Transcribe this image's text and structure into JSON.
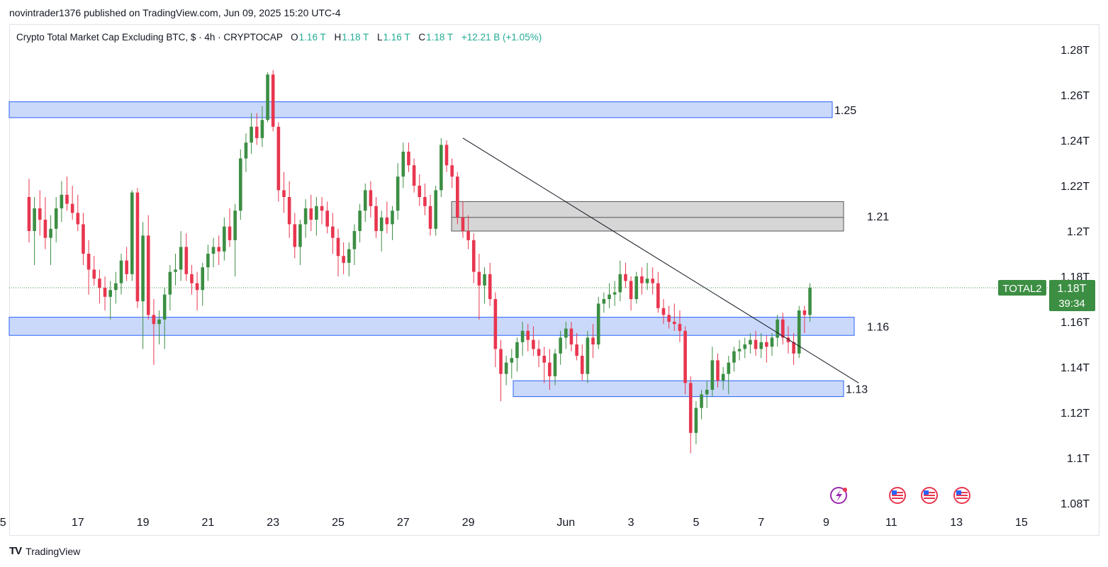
{
  "publisher_line": "novintrader1376 published on TradingView.com, Jun 09, 2025 15:20 UTC-4",
  "legend": {
    "title": "Crypto Total Market Cap Excluding BTC, $ · 4h · CRYPTOCAP",
    "o_label": "O",
    "o_value": "1.16 T",
    "h_label": "H",
    "h_value": "1.18 T",
    "l_label": "L",
    "l_value": "1.16 T",
    "c_label": "C",
    "c_value": "1.18 T",
    "change": "+12.21 B (+1.05%)"
  },
  "footer": {
    "logo_text": "TradingView"
  },
  "colors": {
    "up": "#3c8e43",
    "down": "#e8364f",
    "zone_fill": "#cad9fa",
    "zone_stroke": "#2962ff",
    "gray_zone_fill": "#d6d6d6",
    "label_bg": "#3c8e43"
  },
  "chart_data": {
    "type": "candlestick",
    "timeframe": "4h",
    "symbol": "TOTAL2",
    "ylim": [
      1.08,
      1.28
    ],
    "y_unit": "T",
    "y_ticks": [
      "1.28T",
      "1.26T",
      "1.24T",
      "1.22T",
      "1.2T",
      "1.18T",
      "1.16T",
      "1.14T",
      "1.12T",
      "1.1T",
      "1.08T"
    ],
    "x_ticks": [
      "5",
      "17",
      "19",
      "21",
      "23",
      "25",
      "27",
      "29",
      "Jun",
      "3",
      "5",
      "7",
      "9",
      "11",
      "13",
      "15"
    ],
    "last_price": {
      "label": "TOTAL2",
      "value": "1.18T",
      "countdown": "39:34",
      "y": 1.175
    },
    "zones": [
      {
        "label": "1.25",
        "type": "blue",
        "y_low": 1.25,
        "y_high": 1.257
      },
      {
        "label": "1.21",
        "type": "gray",
        "y_low": 1.2,
        "y_high": 1.213,
        "mid": 1.206
      },
      {
        "label": "1.16",
        "type": "blue",
        "y_low": 1.154,
        "y_high": 1.162
      },
      {
        "label": "1.13",
        "type": "blue",
        "y_low": 1.127,
        "y_high": 1.134
      }
    ],
    "trendline": {
      "start_date": "May 28 20:00",
      "start": 1.241,
      "end_date": "Jun 10 00:00",
      "end": 1.133
    },
    "first_candle": "May 15 12:00",
    "candles": [
      [
        1.215,
        1.223,
        1.195,
        1.2
      ],
      [
        1.2,
        1.215,
        1.185,
        1.21
      ],
      [
        1.21,
        1.218,
        1.198,
        1.205
      ],
      [
        1.205,
        1.215,
        1.192,
        1.197
      ],
      [
        1.197,
        1.207,
        1.185,
        1.201
      ],
      [
        1.201,
        1.215,
        1.195,
        1.21
      ],
      [
        1.21,
        1.222,
        1.204,
        1.216
      ],
      [
        1.216,
        1.224,
        1.209,
        1.212
      ],
      [
        1.212,
        1.22,
        1.205,
        1.208
      ],
      [
        1.208,
        1.216,
        1.2,
        1.203
      ],
      [
        1.203,
        1.208,
        1.185,
        1.19
      ],
      [
        1.19,
        1.196,
        1.172,
        1.183
      ],
      [
        1.183,
        1.189,
        1.176,
        1.179
      ],
      [
        1.179,
        1.183,
        1.168,
        1.175
      ],
      [
        1.175,
        1.18,
        1.165,
        1.171
      ],
      [
        1.171,
        1.178,
        1.161,
        1.174
      ],
      [
        1.174,
        1.182,
        1.168,
        1.177
      ],
      [
        1.177,
        1.19,
        1.172,
        1.187
      ],
      [
        1.187,
        1.193,
        1.178,
        1.181
      ],
      [
        1.181,
        1.218,
        1.178,
        1.217
      ],
      [
        1.217,
        1.219,
        1.166,
        1.169
      ],
      [
        1.169,
        1.204,
        1.148,
        1.198
      ],
      [
        1.198,
        1.207,
        1.161,
        1.163
      ],
      [
        1.163,
        1.17,
        1.141,
        1.159
      ],
      [
        1.159,
        1.165,
        1.15,
        1.161
      ],
      [
        1.161,
        1.175,
        1.148,
        1.172
      ],
      [
        1.172,
        1.185,
        1.165,
        1.182
      ],
      [
        1.182,
        1.19,
        1.176,
        1.183
      ],
      [
        1.183,
        1.2,
        1.178,
        1.193
      ],
      [
        1.193,
        1.199,
        1.178,
        1.181
      ],
      [
        1.181,
        1.185,
        1.172,
        1.177
      ],
      [
        1.177,
        1.182,
        1.165,
        1.174
      ],
      [
        1.174,
        1.186,
        1.167,
        1.184
      ],
      [
        1.184,
        1.194,
        1.178,
        1.19
      ],
      [
        1.19,
        1.197,
        1.184,
        1.193
      ],
      [
        1.193,
        1.198,
        1.185,
        1.191
      ],
      [
        1.191,
        1.206,
        1.187,
        1.202
      ],
      [
        1.202,
        1.21,
        1.193,
        1.196
      ],
      [
        1.196,
        1.212,
        1.18,
        1.209
      ],
      [
        1.209,
        1.236,
        1.205,
        1.232
      ],
      [
        1.232,
        1.243,
        1.226,
        1.239
      ],
      [
        1.239,
        1.252,
        1.234,
        1.246
      ],
      [
        1.246,
        1.252,
        1.238,
        1.241
      ],
      [
        1.241,
        1.255,
        1.237,
        1.249
      ],
      [
        1.249,
        1.27,
        1.248,
        1.269
      ],
      [
        1.269,
        1.271,
        1.244,
        1.246
      ],
      [
        1.246,
        1.248,
        1.213,
        1.218
      ],
      [
        1.218,
        1.226,
        1.208,
        1.215
      ],
      [
        1.215,
        1.222,
        1.197,
        1.203
      ],
      [
        1.203,
        1.208,
        1.188,
        1.193
      ],
      [
        1.193,
        1.205,
        1.185,
        1.203
      ],
      [
        1.203,
        1.214,
        1.197,
        1.21
      ],
      [
        1.21,
        1.216,
        1.2,
        1.205
      ],
      [
        1.205,
        1.215,
        1.198,
        1.211
      ],
      [
        1.211,
        1.215,
        1.203,
        1.209
      ],
      [
        1.209,
        1.213,
        1.199,
        1.202
      ],
      [
        1.202,
        1.208,
        1.19,
        1.197
      ],
      [
        1.197,
        1.201,
        1.18,
        1.189
      ],
      [
        1.189,
        1.195,
        1.181,
        1.186
      ],
      [
        1.186,
        1.195,
        1.18,
        1.192
      ],
      [
        1.192,
        1.203,
        1.185,
        1.2
      ],
      [
        1.2,
        1.212,
        1.195,
        1.209
      ],
      [
        1.209,
        1.221,
        1.204,
        1.218
      ],
      [
        1.218,
        1.222,
        1.206,
        1.211
      ],
      [
        1.211,
        1.215,
        1.197,
        1.2
      ],
      [
        1.2,
        1.209,
        1.191,
        1.206
      ],
      [
        1.206,
        1.213,
        1.199,
        1.203
      ],
      [
        1.203,
        1.211,
        1.196,
        1.209
      ],
      [
        1.209,
        1.23,
        1.205,
        1.224
      ],
      [
        1.224,
        1.239,
        1.219,
        1.235
      ],
      [
        1.235,
        1.239,
        1.226,
        1.229
      ],
      [
        1.229,
        1.232,
        1.217,
        1.22
      ],
      [
        1.22,
        1.225,
        1.211,
        1.215
      ],
      [
        1.215,
        1.221,
        1.207,
        1.211
      ],
      [
        1.211,
        1.216,
        1.198,
        1.201
      ],
      [
        1.201,
        1.22,
        1.198,
        1.218
      ],
      [
        1.218,
        1.241,
        1.215,
        1.238
      ],
      [
        1.238,
        1.24,
        1.226,
        1.229
      ],
      [
        1.229,
        1.232,
        1.219,
        1.224
      ],
      [
        1.224,
        1.226,
        1.203,
        1.206
      ],
      [
        1.206,
        1.213,
        1.197,
        1.2
      ],
      [
        1.2,
        1.207,
        1.192,
        1.196
      ],
      [
        1.196,
        1.199,
        1.177,
        1.182
      ],
      [
        1.182,
        1.19,
        1.161,
        1.176
      ],
      [
        1.176,
        1.184,
        1.168,
        1.181
      ],
      [
        1.181,
        1.186,
        1.167,
        1.17
      ],
      [
        1.17,
        1.173,
        1.14,
        1.148
      ],
      [
        1.148,
        1.152,
        1.125,
        1.137
      ],
      [
        1.137,
        1.145,
        1.132,
        1.142
      ],
      [
        1.142,
        1.148,
        1.135,
        1.144
      ],
      [
        1.144,
        1.153,
        1.138,
        1.151
      ],
      [
        1.151,
        1.16,
        1.145,
        1.156
      ],
      [
        1.156,
        1.159,
        1.147,
        1.152
      ],
      [
        1.152,
        1.158,
        1.145,
        1.148
      ],
      [
        1.148,
        1.152,
        1.14,
        1.145
      ],
      [
        1.145,
        1.149,
        1.133,
        1.142
      ],
      [
        1.142,
        1.148,
        1.13,
        1.136
      ],
      [
        1.136,
        1.148,
        1.132,
        1.146
      ],
      [
        1.146,
        1.156,
        1.141,
        1.153
      ],
      [
        1.153,
        1.16,
        1.148,
        1.157
      ],
      [
        1.157,
        1.16,
        1.147,
        1.15
      ],
      [
        1.15,
        1.155,
        1.143,
        1.145
      ],
      [
        1.145,
        1.15,
        1.134,
        1.137
      ],
      [
        1.137,
        1.156,
        1.133,
        1.153
      ],
      [
        1.153,
        1.159,
        1.144,
        1.15
      ],
      [
        1.15,
        1.171,
        1.148,
        1.168
      ],
      [
        1.168,
        1.173,
        1.164,
        1.17
      ],
      [
        1.17,
        1.177,
        1.166,
        1.172
      ],
      [
        1.172,
        1.178,
        1.167,
        1.173
      ],
      [
        1.173,
        1.187,
        1.169,
        1.181
      ],
      [
        1.181,
        1.186,
        1.175,
        1.178
      ],
      [
        1.178,
        1.18,
        1.165,
        1.17
      ],
      [
        1.17,
        1.182,
        1.168,
        1.18
      ],
      [
        1.18,
        1.184,
        1.172,
        1.177
      ],
      [
        1.177,
        1.186,
        1.174,
        1.179
      ],
      [
        1.179,
        1.184,
        1.172,
        1.177
      ],
      [
        1.177,
        1.182,
        1.164,
        1.166
      ],
      [
        1.166,
        1.17,
        1.159,
        1.163
      ],
      [
        1.163,
        1.167,
        1.157,
        1.16
      ],
      [
        1.16,
        1.168,
        1.156,
        1.159
      ],
      [
        1.159,
        1.165,
        1.151,
        1.156
      ],
      [
        1.156,
        1.158,
        1.128,
        1.133
      ],
      [
        1.133,
        1.136,
        1.102,
        1.111
      ],
      [
        1.111,
        1.125,
        1.106,
        1.122
      ],
      [
        1.122,
        1.13,
        1.117,
        1.128
      ],
      [
        1.128,
        1.134,
        1.122,
        1.13
      ],
      [
        1.13,
        1.149,
        1.127,
        1.143
      ],
      [
        1.143,
        1.146,
        1.131,
        1.134
      ],
      [
        1.134,
        1.14,
        1.13,
        1.137
      ],
      [
        1.137,
        1.145,
        1.128,
        1.142
      ],
      [
        1.142,
        1.149,
        1.138,
        1.147
      ],
      [
        1.147,
        1.152,
        1.143,
        1.148
      ],
      [
        1.148,
        1.153,
        1.144,
        1.15
      ],
      [
        1.15,
        1.155,
        1.146,
        1.152
      ],
      [
        1.152,
        1.156,
        1.145,
        1.148
      ],
      [
        1.148,
        1.155,
        1.144,
        1.151
      ],
      [
        1.151,
        1.154,
        1.142,
        1.149
      ],
      [
        1.149,
        1.155,
        1.145,
        1.153
      ],
      [
        1.153,
        1.163,
        1.149,
        1.161
      ],
      [
        1.161,
        1.164,
        1.15,
        1.153
      ],
      [
        1.153,
        1.158,
        1.146,
        1.151
      ],
      [
        1.151,
        1.155,
        1.141,
        1.146
      ],
      [
        1.146,
        1.167,
        1.144,
        1.165
      ],
      [
        1.165,
        1.167,
        1.155,
        1.163
      ],
      [
        1.163,
        1.177,
        1.16,
        1.175
      ]
    ]
  }
}
